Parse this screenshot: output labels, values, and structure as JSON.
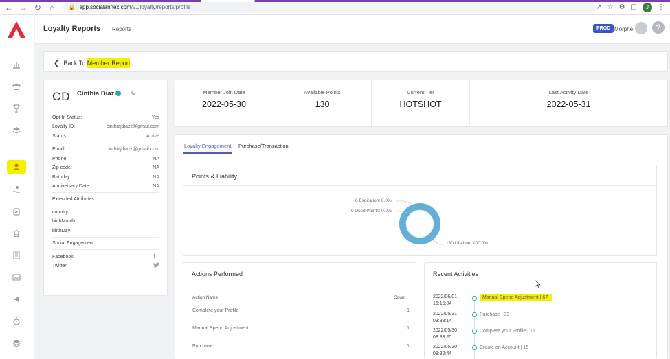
{
  "browser": {
    "url_host": "app.socialannex.com",
    "url_path": "/v1/loyalty/reports/profile",
    "profile_initial": "J"
  },
  "sidebar": {
    "icons": [
      "bar-chart-icon",
      "group-icon",
      "trophy-icon",
      "layers-icon",
      "member-icon",
      "hand-coin-icon",
      "clipboard-check-icon",
      "badge-icon",
      "document-icon",
      "image-icon",
      "megaphone-icon",
      "stopwatch-icon",
      "stack-icon"
    ],
    "active": "member-icon"
  },
  "header": {
    "title": "Loyalty Reports",
    "nav_item": "Reports",
    "env_badge": "PROD",
    "user": "Morphe",
    "help": "?"
  },
  "back": {
    "prefix": "Back To ",
    "highlighted": "Member Report"
  },
  "profile": {
    "initials": "CD",
    "name": "Cinthia Diaz",
    "fields": [
      {
        "label": "Opt-In Status:",
        "value": "Yes"
      },
      {
        "label": "Loyalty ID:",
        "value": "cinthiajdiazz@gmail.com"
      },
      {
        "label": "Status:",
        "value": "Active"
      },
      {
        "label": "Email:",
        "value": "cinthiajdiazz@gmail.com"
      },
      {
        "label": "Phone:",
        "value": "NA"
      },
      {
        "label": "Zip code:",
        "value": "NA"
      },
      {
        "label": "Birthday:",
        "value": "NA"
      },
      {
        "label": "Anniversary Date:",
        "value": "NA"
      }
    ],
    "extended_title": "Extended Attributes:",
    "extended": [
      "country:",
      "birthMonth:",
      "birthDay:"
    ],
    "social_title": "Social Engagement:",
    "social": [
      "Facebook:",
      "Twitter:"
    ]
  },
  "stats": [
    {
      "label": "Member Join Date",
      "value": "2022-05-30"
    },
    {
      "label": "Available Points",
      "value": "130"
    },
    {
      "label": "Current Tier",
      "value": "HOTSHOT"
    },
    {
      "label": "Last Activity Date",
      "value": "2022-05-31"
    }
  ],
  "tabs": [
    "Loyalty Engagement",
    "Purchase/Transaction"
  ],
  "points_liability": {
    "title": "Points & Liability",
    "labels": {
      "expiration": "0 Expiration: 0.0%",
      "used": "0 Used Points: 0.0%",
      "lifetime": "130 Lifetime: 100.0%"
    },
    "colors": {
      "ring": "#64afd6",
      "ring_inner": "#eaf4fa"
    }
  },
  "actions": {
    "title": "Actions Performed",
    "col_action": "Action Name",
    "col_count": "Count",
    "rows": [
      {
        "name": "Complete your Profile",
        "count": "1"
      },
      {
        "name": "Manual Spend Adjustment",
        "count": "1"
      },
      {
        "name": "Purchase",
        "count": "1"
      }
    ]
  },
  "recent": {
    "title": "Recent Activities",
    "items": [
      {
        "date": "2022/06/01",
        "time": "16:15:04",
        "text": "Manual Spend Adjustment | 67"
      },
      {
        "date": "2022/05/31",
        "time": "03:38:14",
        "text": "Purchase | 33"
      },
      {
        "date": "2022/05/30",
        "time": "08:33:20",
        "text": "Complete your Profile | 15"
      },
      {
        "date": "2022/05/30",
        "time": "08:32:44",
        "text": "Create an Account | 15"
      }
    ]
  }
}
